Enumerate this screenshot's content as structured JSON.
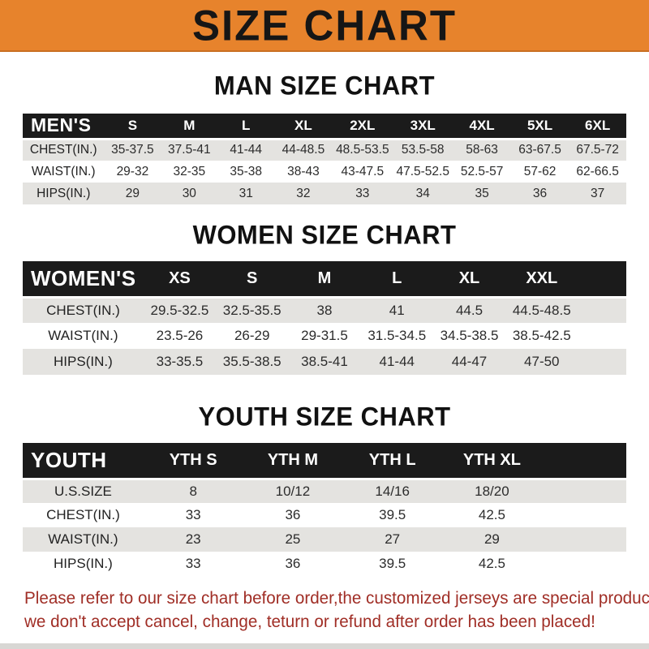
{
  "banner": {
    "title": "SIZE CHART"
  },
  "colors": {
    "banner_orange": "#E7832C",
    "bar_black": "#1B1B1B",
    "row_gray": "#E4E3E0",
    "footer_red": "#A02E26"
  },
  "chart_data": [
    {
      "type": "table",
      "title": "MAN SIZE CHART",
      "corner_label": "MEN'S",
      "columns": [
        "S",
        "M",
        "L",
        "XL",
        "2XL",
        "3XL",
        "4XL",
        "5XL",
        "6XL"
      ],
      "rows": [
        {
          "label": "CHEST(IN.)",
          "values": [
            "35-37.5",
            "37.5-41",
            "41-44",
            "44-48.5",
            "48.5-53.5",
            "53.5-58",
            "58-63",
            "63-67.5",
            "67.5-72"
          ]
        },
        {
          "label": "WAIST(IN.)",
          "values": [
            "29-32",
            "32-35",
            "35-38",
            "38-43",
            "43-47.5",
            "47.5-52.5",
            "52.5-57",
            "57-62",
            "62-66.5"
          ]
        },
        {
          "label": "HIPS(IN.)",
          "values": [
            "29",
            "30",
            "31",
            "32",
            "33",
            "34",
            "35",
            "36",
            "37"
          ]
        }
      ]
    },
    {
      "type": "table",
      "title": "WOMEN SIZE CHART",
      "corner_label": "WOMEN'S",
      "columns": [
        "XS",
        "S",
        "M",
        "L",
        "XL",
        "XXL"
      ],
      "rows": [
        {
          "label": "CHEST(IN.)",
          "values": [
            "29.5-32.5",
            "32.5-35.5",
            "38",
            "41",
            "44.5",
            "44.5-48.5"
          ]
        },
        {
          "label": "WAIST(IN.)",
          "values": [
            "23.5-26",
            "26-29",
            "29-31.5",
            "31.5-34.5",
            "34.5-38.5",
            "38.5-42.5"
          ]
        },
        {
          "label": "HIPS(IN.)",
          "values": [
            "33-35.5",
            "35.5-38.5",
            "38.5-41",
            "41-44",
            "44-47",
            "47-50"
          ]
        }
      ]
    },
    {
      "type": "table",
      "title": "YOUTH SIZE CHART",
      "corner_label": "YOUTH",
      "columns": [
        "YTH S",
        "YTH M",
        "YTH L",
        "YTH XL"
      ],
      "rows": [
        {
          "label": "U.S.SIZE",
          "values": [
            "8",
            "10/12",
            "14/16",
            "18/20"
          ]
        },
        {
          "label": "CHEST(IN.)",
          "values": [
            "33",
            "36",
            "39.5",
            "42.5"
          ]
        },
        {
          "label": "WAIST(IN.)",
          "values": [
            "23",
            "25",
            "27",
            "29"
          ]
        },
        {
          "label": "HIPS(IN.)",
          "values": [
            "33",
            "36",
            "39.5",
            "42.5"
          ]
        }
      ]
    }
  ],
  "footer": {
    "line1": "Please refer to our size chart before order,the customized jerseys are special products,",
    "line2": "we don't accept cancel, change, teturn or refund after order has been placed!"
  }
}
